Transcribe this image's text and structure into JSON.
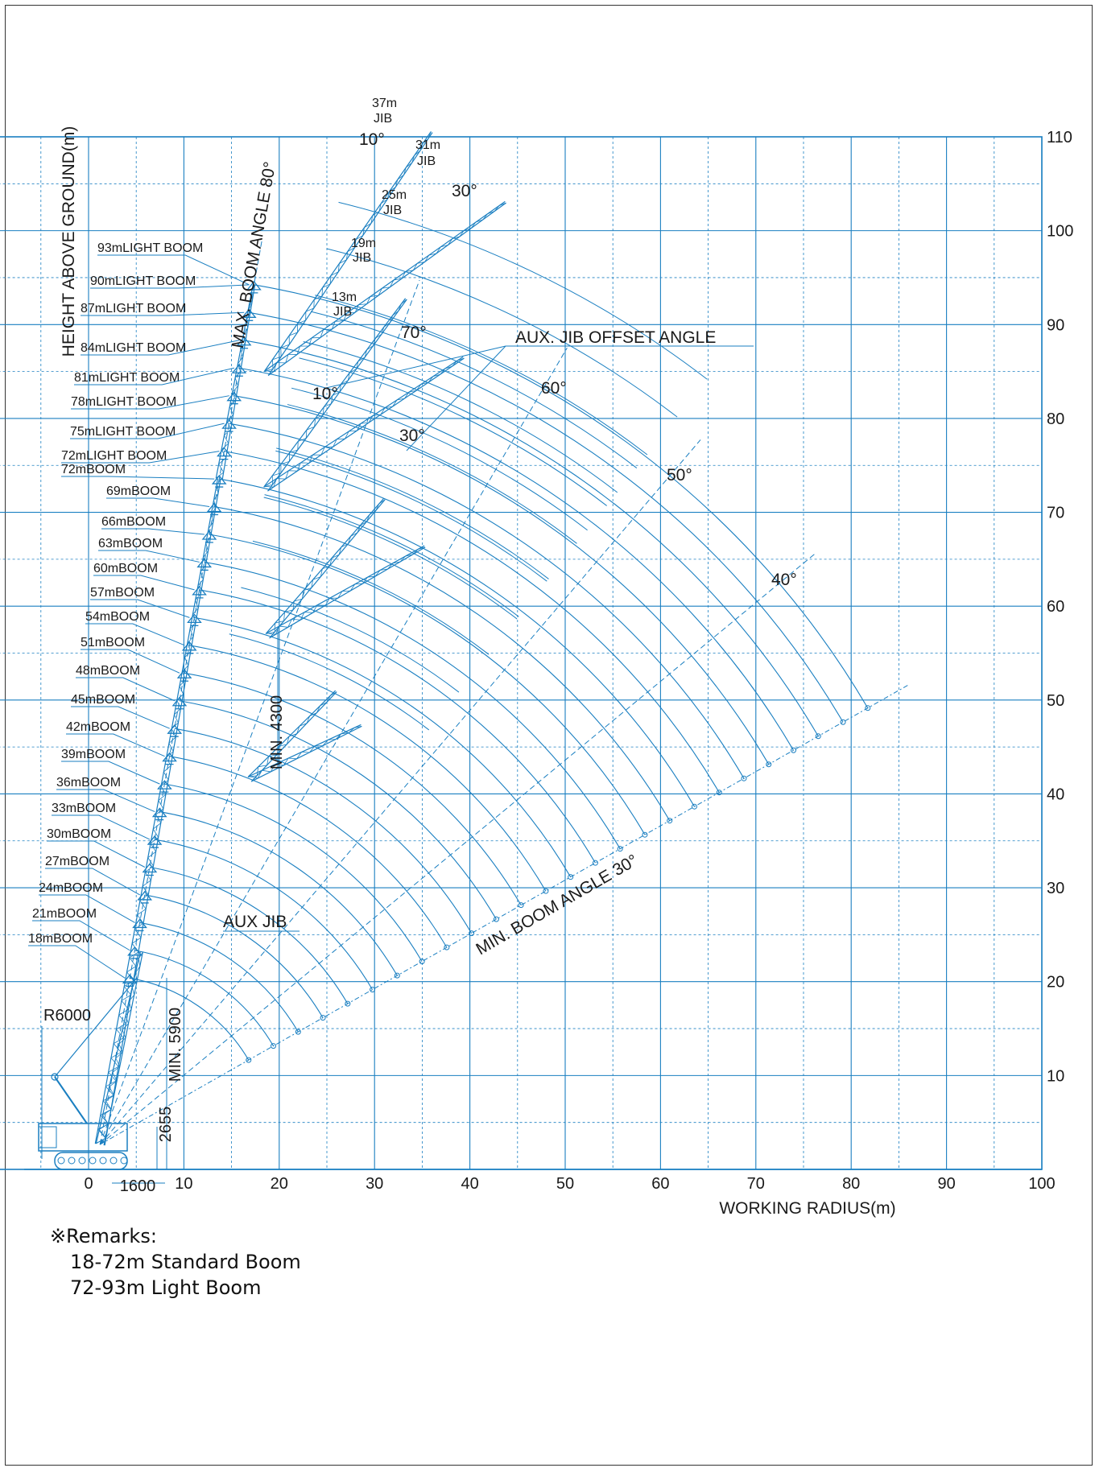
{
  "colors": {
    "line": "#1a7fc1",
    "grid": "#1a7fc1",
    "text": "#1a1a1a",
    "frame": "#333333"
  },
  "chart_data": {
    "type": "range-diagram",
    "title": "",
    "xlabel": "WORKING RADIUS(m)",
    "ylabel": "HEIGHT ABOVE GROUND(m)",
    "xlim": [
      -10,
      100
    ],
    "ylim": [
      0,
      110
    ],
    "x_ticks": [
      0,
      10,
      20,
      30,
      40,
      50,
      60,
      70,
      80,
      90,
      100
    ],
    "y_ticks": [
      10,
      20,
      30,
      40,
      50,
      60,
      70,
      80,
      90,
      100,
      110
    ],
    "grid": true,
    "boom_labels": [
      "18mBOOM",
      "21mBOOM",
      "24mBOOM",
      "27mBOOM",
      "30mBOOM",
      "33mBOOM",
      "36mBOOM",
      "39mBOOM",
      "42mBOOM",
      "45mBOOM",
      "48mBOOM",
      "51mBOOM",
      "54mBOOM",
      "57mBOOM",
      "60mBOOM",
      "63mBOOM",
      "66mBOOM",
      "69mBOOM",
      "72mBOOM",
      "72mLIGHT BOOM",
      "75mLIGHT BOOM",
      "78mLIGHT BOOM",
      "81mLIGHT BOOM",
      "84mLIGHT BOOM",
      "87mLIGHT BOOM",
      "90mLIGHT BOOM",
      "93mLIGHT BOOM"
    ],
    "boom_lengths": [
      18,
      21,
      24,
      27,
      30,
      33,
      36,
      39,
      42,
      45,
      48,
      51,
      54,
      57,
      60,
      63,
      66,
      69,
      72,
      75,
      78,
      81,
      84,
      87,
      90,
      93
    ],
    "jib_labels": [
      "13m\nJIB",
      "19m\nJIB",
      "25m\nJIB",
      "31m\nJIB",
      "37m\nJIB"
    ],
    "annotations": {
      "max_boom_angle": "MAX. BOOM ANGLE 80°",
      "min_boom_angle": "MIN. BOOM ANGLE 30°",
      "aux_jib_offset": "AUX. JIB OFFSET ANGLE",
      "aux_jib": "AUX JIB",
      "min_4300": "MIN. 4300",
      "min_5900": "MIN. 5900",
      "dim_2655": "2655",
      "dim_1600": "1600",
      "r6000": "R6000",
      "angle_10_top": "10°",
      "angle_30_top": "30°",
      "angle_10_mid": "10°",
      "angle_30_mid": "30°",
      "angle_70": "70°",
      "angle_60": "60°",
      "angle_50": "50°",
      "angle_40": "40°"
    }
  },
  "remarks": {
    "title": "※Remarks:",
    "line1": "18-72m Standard Boom",
    "line2": "72-93m Light Boom"
  }
}
